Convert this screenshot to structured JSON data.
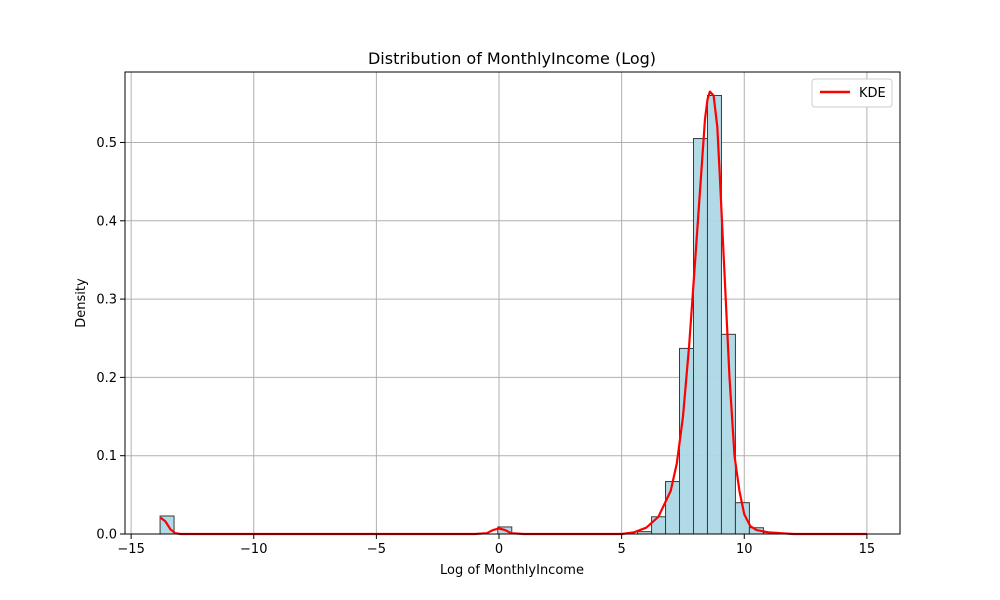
{
  "chart_data": {
    "type": "bar",
    "title": "Distribution of MonthlyIncome (Log)",
    "xlabel": "Log of MonthlyIncome",
    "ylabel": "Density",
    "xlim": [
      -15.25,
      16.35
    ],
    "ylim": [
      0,
      0.59
    ],
    "xticks": [
      -15,
      -10,
      -5,
      0,
      5,
      10,
      15
    ],
    "yticks": [
      0.0,
      0.1,
      0.2,
      0.3,
      0.4,
      0.5
    ],
    "xtick_labels": [
      "−15",
      "−10",
      "−5",
      "0",
      "5",
      "10",
      "15"
    ],
    "ytick_labels": [
      "0.0",
      "0.1",
      "0.2",
      "0.3",
      "0.4",
      "0.5"
    ],
    "grid": true,
    "legend": {
      "placement": "top-right",
      "entries": [
        "KDE"
      ]
    },
    "histogram": {
      "bin_width": 0.57,
      "bins": [
        {
          "x0": -13.82,
          "x1": -13.25,
          "density": 0.023
        },
        {
          "x0": -0.05,
          "x1": 0.52,
          "density": 0.009
        },
        {
          "x0": 5.65,
          "x1": 6.22,
          "density": 0.003
        },
        {
          "x0": 6.22,
          "x1": 6.79,
          "density": 0.022
        },
        {
          "x0": 6.79,
          "x1": 7.36,
          "density": 0.067
        },
        {
          "x0": 7.36,
          "x1": 7.93,
          "density": 0.237
        },
        {
          "x0": 7.93,
          "x1": 8.5,
          "density": 0.505
        },
        {
          "x0": 8.5,
          "x1": 9.07,
          "density": 0.56
        },
        {
          "x0": 9.07,
          "x1": 9.64,
          "density": 0.255
        },
        {
          "x0": 9.64,
          "x1": 10.21,
          "density": 0.04
        },
        {
          "x0": 10.21,
          "x1": 10.78,
          "density": 0.008
        },
        {
          "x0": 10.78,
          "x1": 11.35,
          "density": 0.002
        }
      ],
      "fill_color": "#add8e6",
      "edge_color": "#3a3a3a"
    },
    "kde": {
      "name": "KDE",
      "color": "#ff0000",
      "x": [
        -13.8,
        -13.6,
        -13.4,
        -13.2,
        -13.0,
        -12.5,
        -10.0,
        -5.0,
        -1.0,
        -0.5,
        -0.25,
        0.0,
        0.25,
        0.5,
        1.0,
        3.0,
        5.0,
        5.5,
        6.0,
        6.5,
        7.0,
        7.25,
        7.5,
        7.75,
        8.0,
        8.2,
        8.4,
        8.5,
        8.6,
        8.75,
        8.9,
        9.0,
        9.2,
        9.4,
        9.6,
        9.8,
        10.0,
        10.25,
        10.5,
        11.0,
        11.5,
        12.0,
        13.0,
        15.0
      ],
      "y": [
        0.021,
        0.016,
        0.006,
        0.001,
        0.0,
        0.0,
        0.0,
        0.0,
        0.0,
        0.001,
        0.005,
        0.007,
        0.005,
        0.001,
        0.0,
        0.0,
        0.0,
        0.002,
        0.008,
        0.022,
        0.055,
        0.09,
        0.15,
        0.24,
        0.35,
        0.44,
        0.53,
        0.555,
        0.565,
        0.56,
        0.52,
        0.46,
        0.33,
        0.2,
        0.1,
        0.055,
        0.025,
        0.01,
        0.005,
        0.002,
        0.001,
        0.0,
        0.0,
        0.0
      ]
    }
  }
}
